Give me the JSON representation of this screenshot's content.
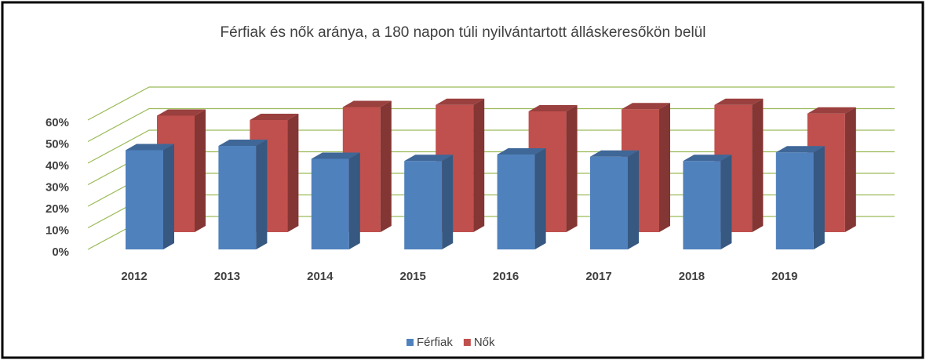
{
  "chart_data": {
    "type": "bar3d",
    "title": "Férfiak és nők aránya, a 180 napon túli nyilvántartott álláskeresőkön belül",
    "categories": [
      "2012",
      "2013",
      "2014",
      "2015",
      "2016",
      "2017",
      "2018",
      "2019"
    ],
    "series": [
      {
        "name": "Férfiak",
        "color": "#4f81bd",
        "values": [
          46,
          48,
          42,
          41,
          44,
          43,
          41,
          45
        ]
      },
      {
        "name": "Nők",
        "color": "#c0504d",
        "values": [
          54,
          52,
          58,
          59,
          56,
          57,
          59,
          55
        ]
      }
    ],
    "ylim": [
      0,
      60
    ],
    "yticks": [
      {
        "value": 0,
        "label": "0%"
      },
      {
        "value": 10,
        "label": "10%"
      },
      {
        "value": 20,
        "label": "20%"
      },
      {
        "value": 30,
        "label": "30%"
      },
      {
        "value": 40,
        "label": "40%"
      },
      {
        "value": 50,
        "label": "50%"
      },
      {
        "value": 60,
        "label": "60%"
      }
    ],
    "grid": true,
    "grid_color": "#9bbb59",
    "legend": "bottom"
  }
}
